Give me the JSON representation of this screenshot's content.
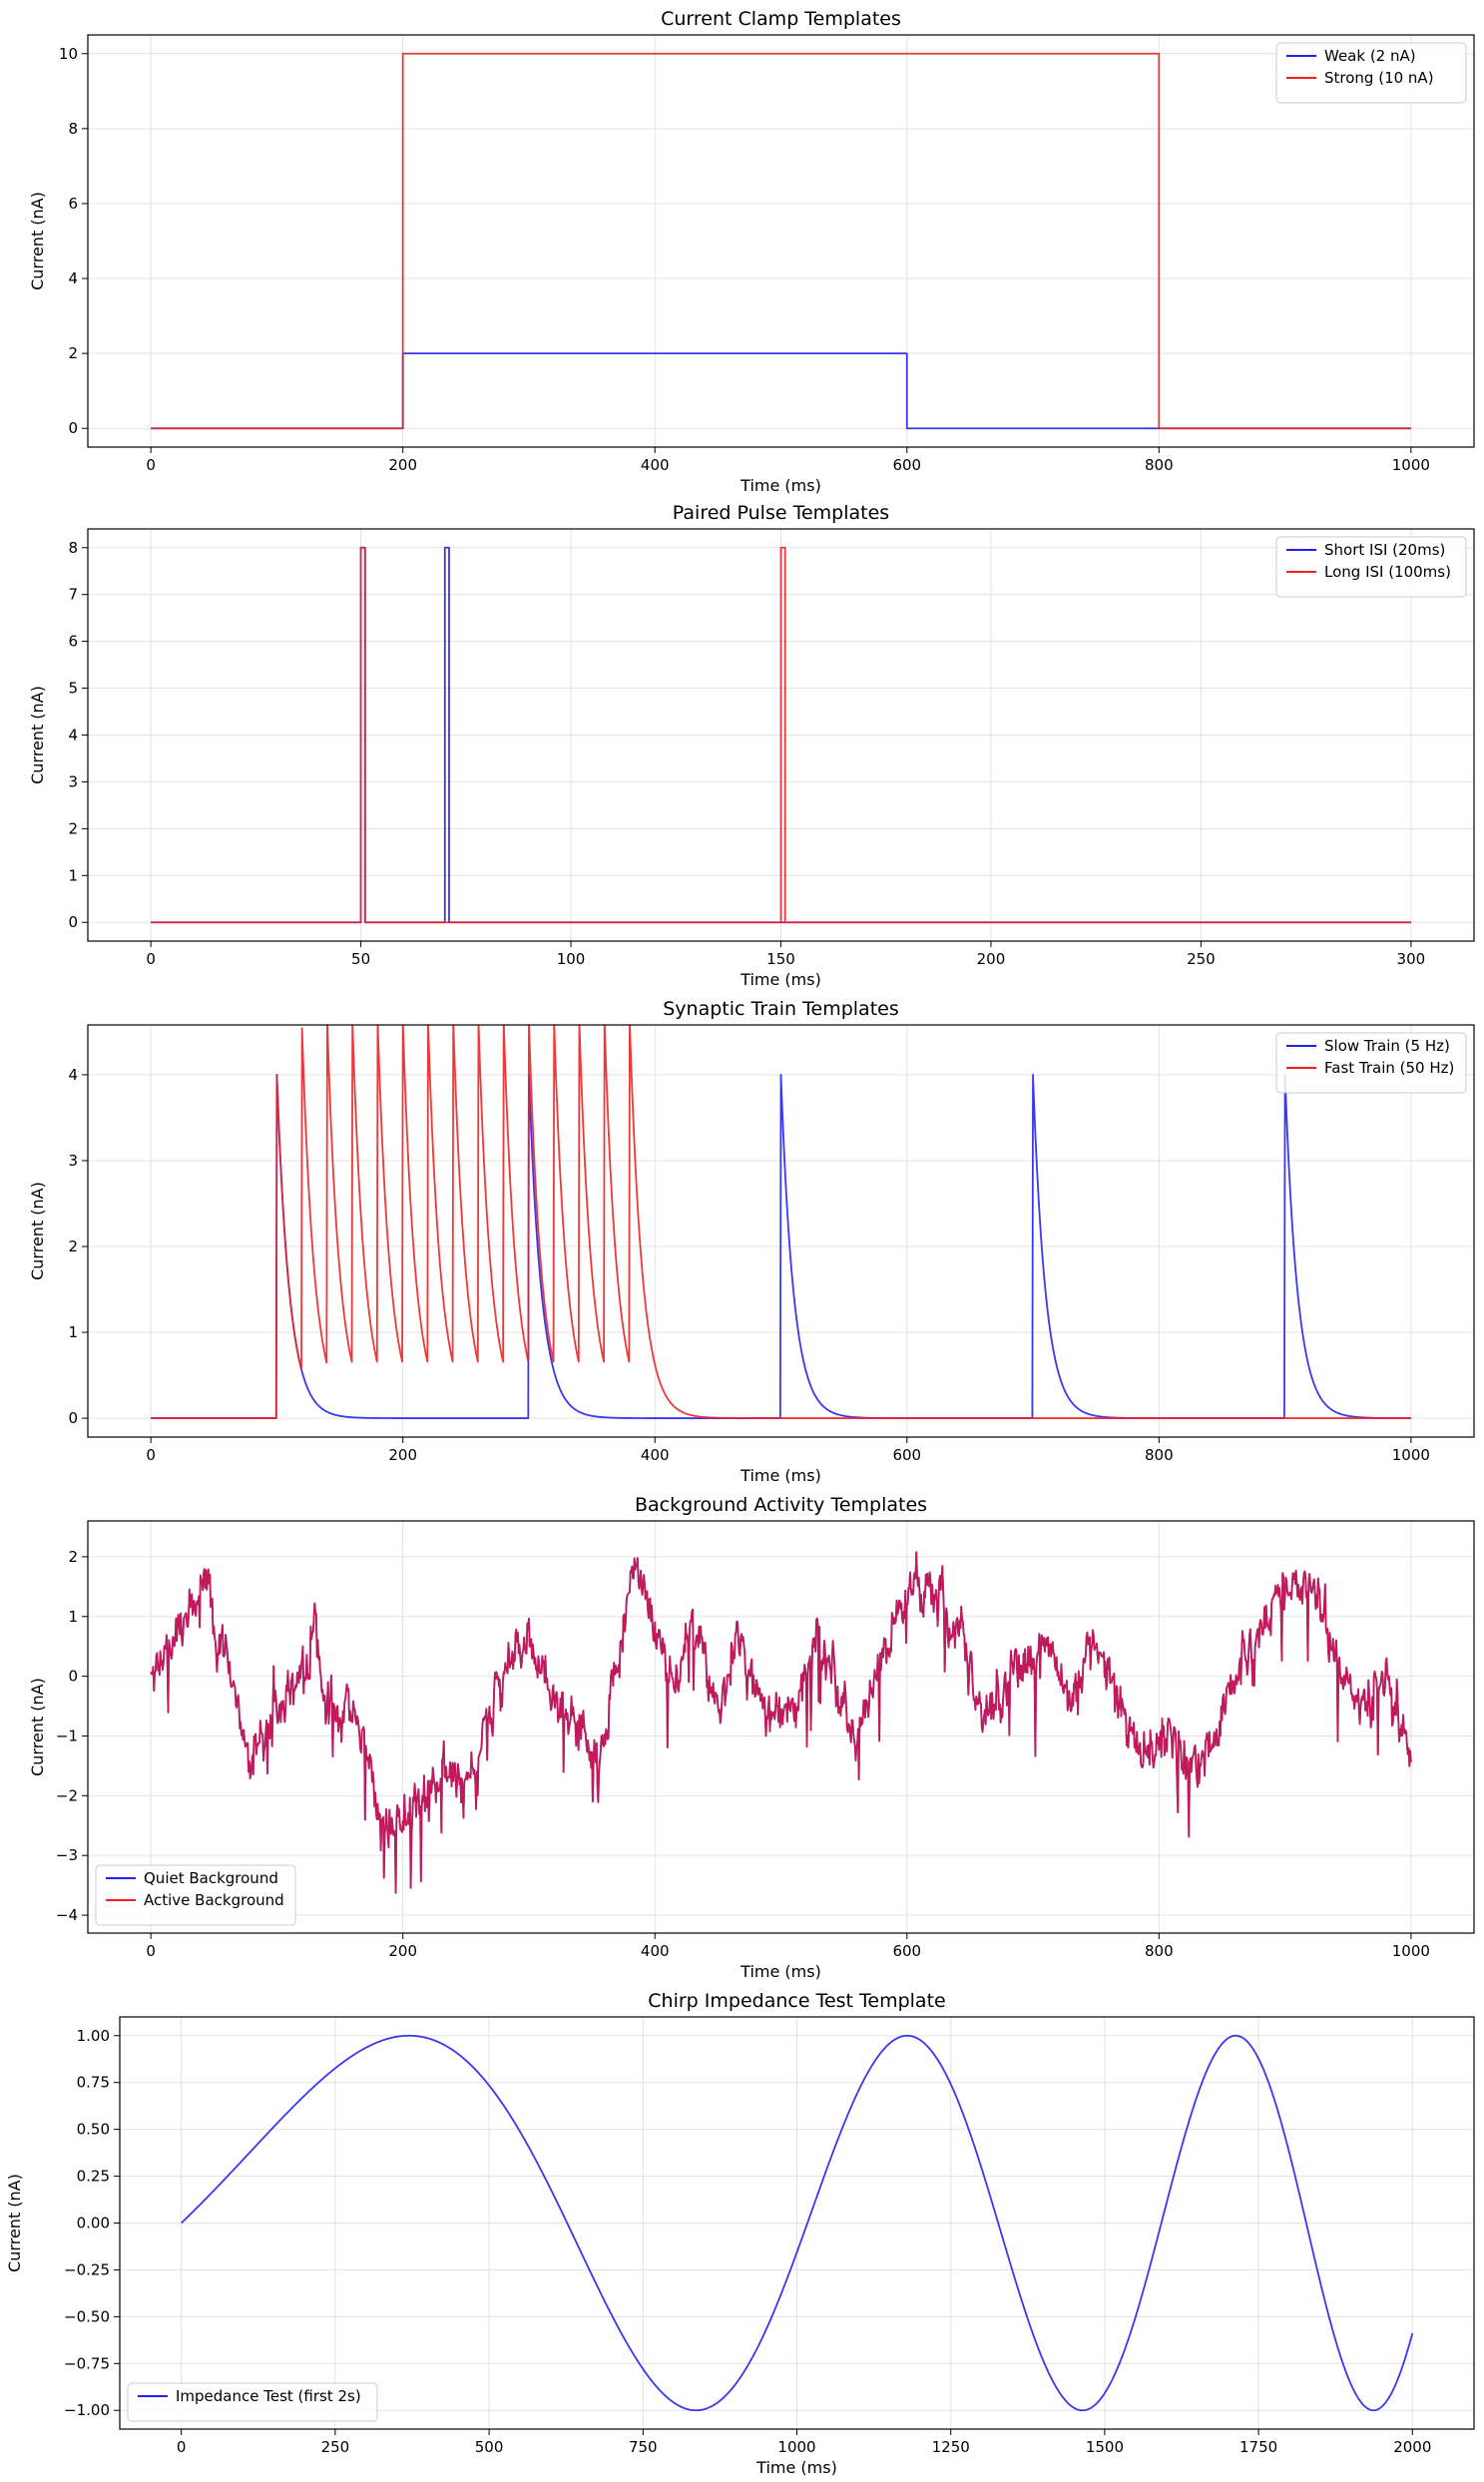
{
  "colors": {
    "blue": "#2222ee",
    "red": "#ee2222",
    "grid": "#e3e3e3"
  },
  "chart_data": [
    {
      "type": "line",
      "title": "Current Clamp Templates",
      "xlabel": "Time (ms)",
      "ylabel": "Current (nA)",
      "xlim": [
        -50,
        1050
      ],
      "ylim": [
        -0.5,
        10.5
      ],
      "xticks": [
        0,
        200,
        400,
        600,
        800,
        1000
      ],
      "xtick_labels": [
        "0",
        "200",
        "400",
        "600",
        "800",
        "1000"
      ],
      "yticks": [
        0,
        2,
        4,
        6,
        8,
        10
      ],
      "ytick_labels": [
        "0",
        "2",
        "4",
        "6",
        "8",
        "10"
      ],
      "grid": true,
      "legend_position": "top-right",
      "series": [
        {
          "name": "Weak (2 nA)",
          "color": "blue",
          "kind": "step",
          "points": [
            [
              0,
              0
            ],
            [
              200,
              0
            ],
            [
              200,
              2
            ],
            [
              600,
              2
            ],
            [
              600,
              0
            ],
            [
              1000,
              0
            ]
          ]
        },
        {
          "name": "Strong (10 nA)",
          "color": "red",
          "kind": "step",
          "points": [
            [
              0,
              0
            ],
            [
              200,
              0
            ],
            [
              200,
              10
            ],
            [
              800,
              10
            ],
            [
              800,
              0
            ],
            [
              1000,
              0
            ]
          ]
        }
      ]
    },
    {
      "type": "line",
      "title": "Paired Pulse Templates",
      "xlabel": "Time (ms)",
      "ylabel": "Current (nA)",
      "xlim": [
        -15,
        315
      ],
      "ylim": [
        -0.4,
        8.4
      ],
      "xticks": [
        0,
        50,
        100,
        150,
        200,
        250,
        300
      ],
      "xtick_labels": [
        "0",
        "50",
        "100",
        "150",
        "200",
        "250",
        "300"
      ],
      "yticks": [
        0,
        1,
        2,
        3,
        4,
        5,
        6,
        7,
        8
      ],
      "ytick_labels": [
        "0",
        "1",
        "2",
        "3",
        "4",
        "5",
        "6",
        "7",
        "8"
      ],
      "grid": true,
      "legend_position": "top-right",
      "series": [
        {
          "name": "Short ISI (20ms)",
          "color": "blue",
          "kind": "step",
          "points": [
            [
              0,
              0
            ],
            [
              50,
              0
            ],
            [
              50,
              8
            ],
            [
              51,
              8
            ],
            [
              51,
              0
            ],
            [
              70,
              0
            ],
            [
              70,
              8
            ],
            [
              71,
              8
            ],
            [
              71,
              0
            ],
            [
              300,
              0
            ]
          ]
        },
        {
          "name": "Long ISI (100ms)",
          "color": "red",
          "kind": "step",
          "points": [
            [
              0,
              0
            ],
            [
              50,
              0
            ],
            [
              50,
              8
            ],
            [
              51,
              8
            ],
            [
              51,
              0
            ],
            [
              150,
              0
            ],
            [
              150,
              8
            ],
            [
              151,
              8
            ],
            [
              151,
              0
            ],
            [
              300,
              0
            ]
          ]
        }
      ]
    },
    {
      "type": "line",
      "title": "Synaptic Train Templates",
      "xlabel": "Time (ms)",
      "ylabel": "Current (nA)",
      "xlim": [
        -50,
        1050
      ],
      "ylim": [
        -0.22,
        4.58
      ],
      "xticks": [
        0,
        200,
        400,
        600,
        800,
        1000
      ],
      "xtick_labels": [
        "0",
        "200",
        "400",
        "600",
        "800",
        "1000"
      ],
      "yticks": [
        0,
        1,
        2,
        3,
        4
      ],
      "ytick_labels": [
        "0",
        "1",
        "2",
        "3",
        "4"
      ],
      "grid": true,
      "legend_position": "top-right",
      "series": [
        {
          "name": "Slow Train (5 Hz)",
          "color": "blue",
          "kind": "psc",
          "amplitude": 4,
          "tau_ms": 10,
          "onsets": [
            100,
            300,
            500,
            700,
            900
          ],
          "t_end": 1000
        },
        {
          "name": "Fast Train (50 Hz)",
          "color": "red",
          "kind": "psc",
          "amplitude": 4,
          "tau_ms": 10,
          "onsets": [
            100,
            120,
            140,
            160,
            180,
            200,
            220,
            240,
            260,
            280,
            300,
            320,
            340,
            360,
            380
          ],
          "t_end": 1000
        }
      ]
    },
    {
      "type": "line",
      "title": "Background Activity Templates",
      "xlabel": "Time (ms)",
      "ylabel": "Current (nA)",
      "xlim": [
        -50,
        1050
      ],
      "ylim": [
        -4.3,
        2.6
      ],
      "xticks": [
        0,
        200,
        400,
        600,
        800,
        1000
      ],
      "xtick_labels": [
        "0",
        "200",
        "400",
        "600",
        "800",
        "1000"
      ],
      "yticks": [
        -4,
        -3,
        -2,
        -1,
        0,
        1,
        2
      ],
      "ytick_labels": [
        "−4",
        "−3",
        "−2",
        "−1",
        "0",
        "1",
        "2"
      ],
      "grid": true,
      "legend_position": "bottom-left",
      "series": [
        {
          "name": "Quiet Background",
          "color": "blue",
          "kind": "noise",
          "t_end": 1000,
          "min": -4.0,
          "max": 2.3,
          "envelope": [
            [
              0,
              0
            ],
            [
              20,
              0.7
            ],
            [
              42,
              1.6
            ],
            [
              60,
              0.2
            ],
            [
              80,
              -1.4
            ],
            [
              100,
              -0.7
            ],
            [
              130,
              0.6
            ],
            [
              145,
              -0.8
            ],
            [
              165,
              -0.8
            ],
            [
              190,
              -2.8
            ],
            [
              210,
              -2.2
            ],
            [
              230,
              -1.6
            ],
            [
              250,
              -1.8
            ],
            [
              265,
              -0.9
            ],
            [
              280,
              0.0
            ],
            [
              300,
              0.6
            ],
            [
              320,
              -0.3
            ],
            [
              340,
              -0.9
            ],
            [
              355,
              -1.5
            ],
            [
              370,
              0.3
            ],
            [
              385,
              1.7
            ],
            [
              400,
              0.8
            ],
            [
              415,
              -0.3
            ],
            [
              430,
              0.9
            ],
            [
              450,
              -0.6
            ],
            [
              465,
              0.6
            ],
            [
              490,
              -0.6
            ],
            [
              510,
              -0.6
            ],
            [
              530,
              0.7
            ],
            [
              545,
              -0.2
            ],
            [
              560,
              -1.0
            ],
            [
              580,
              0.3
            ],
            [
              600,
              1.4
            ],
            [
              615,
              1.6
            ],
            [
              640,
              0.9
            ],
            [
              660,
              -0.7
            ],
            [
              690,
              0.0
            ],
            [
              710,
              0.6
            ],
            [
              730,
              -0.4
            ],
            [
              750,
              0.4
            ],
            [
              770,
              -0.6
            ],
            [
              790,
              -1.3
            ],
            [
              810,
              -0.9
            ],
            [
              830,
              -1.7
            ],
            [
              850,
              -0.6
            ],
            [
              870,
              0.4
            ],
            [
              895,
              1.3
            ],
            [
              920,
              1.7
            ],
            [
              940,
              0.3
            ],
            [
              960,
              -0.6
            ],
            [
              980,
              0.0
            ],
            [
              1000,
              -1.4
            ]
          ]
        },
        {
          "name": "Active Background",
          "color": "red",
          "kind": "overlay"
        }
      ]
    },
    {
      "type": "line",
      "title": "Chirp Impedance Test Template",
      "xlabel": "Time (ms)",
      "ylabel": "Current (nA)",
      "xlim": [
        -100,
        2100
      ],
      "ylim": [
        -1.1,
        1.1
      ],
      "xticks": [
        0,
        250,
        500,
        750,
        1000,
        1250,
        1500,
        1750,
        2000
      ],
      "xtick_labels": [
        "0",
        "250",
        "500",
        "750",
        "1000",
        "1250",
        "1500",
        "1750",
        "2000"
      ],
      "yticks": [
        -1.0,
        -0.75,
        -0.5,
        -0.25,
        0.0,
        0.25,
        0.5,
        0.75,
        1.0
      ],
      "ytick_labels": [
        "−1.00",
        "−0.75",
        "−0.50",
        "−0.25",
        "0.00",
        "0.25",
        "0.50",
        "0.75",
        "1.00"
      ],
      "grid": true,
      "legend_position": "bottom-left",
      "series": [
        {
          "name": "Impedance Test (first 2s)",
          "color": "blue",
          "kind": "chirp",
          "f0_hz": 0.5,
          "f1_hz": 10,
          "duration_ms": 10000,
          "t_end": 2000
        }
      ]
    }
  ]
}
